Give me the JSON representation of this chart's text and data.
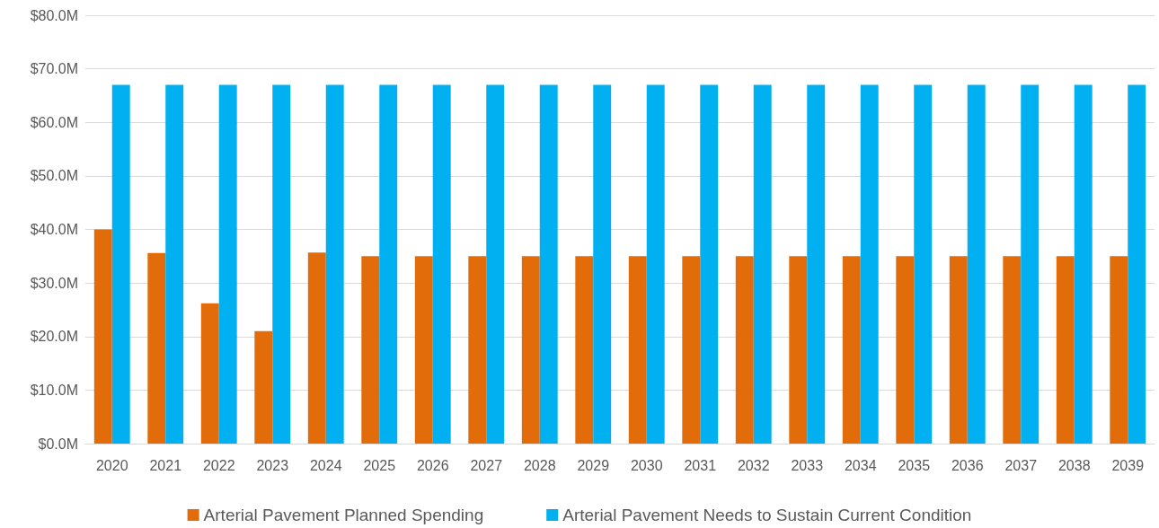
{
  "chart_data": {
    "type": "bar",
    "categories": [
      "2020",
      "2021",
      "2022",
      "2023",
      "2024",
      "2025",
      "2026",
      "2027",
      "2028",
      "2029",
      "2030",
      "2031",
      "2032",
      "2033",
      "2034",
      "2035",
      "2036",
      "2037",
      "2038",
      "2039"
    ],
    "series": [
      {
        "name": "Arterial Pavement Planned Spending",
        "color": "#e36c0a",
        "values": [
          40,
          35.6,
          26.2,
          21,
          35.7,
          35,
          35,
          35,
          35,
          35,
          35,
          35,
          35,
          35,
          35,
          35,
          35,
          35,
          35,
          35
        ]
      },
      {
        "name": "Arterial Pavement Needs to Sustain Current Condition",
        "color": "#00b0f0",
        "values": [
          67,
          67,
          67,
          67,
          67,
          67,
          67,
          67,
          67,
          67,
          67,
          67,
          67,
          67,
          67,
          67,
          67,
          67,
          67,
          67
        ]
      }
    ],
    "ylim": [
      0,
      80
    ],
    "yticks": [
      {
        "value": 0,
        "label": "$0.0M"
      },
      {
        "value": 10,
        "label": "$10.0M"
      },
      {
        "value": 20,
        "label": "$20.0M"
      },
      {
        "value": 30,
        "label": "$30.0M"
      },
      {
        "value": 40,
        "label": "$40.0M"
      },
      {
        "value": 50,
        "label": "$50.0M"
      },
      {
        "value": 60,
        "label": "$60.0M"
      },
      {
        "value": 70,
        "label": "$70.0M"
      },
      {
        "value": 80,
        "label": "$80.0M"
      }
    ],
    "grid": "y",
    "legend": "bottom"
  }
}
